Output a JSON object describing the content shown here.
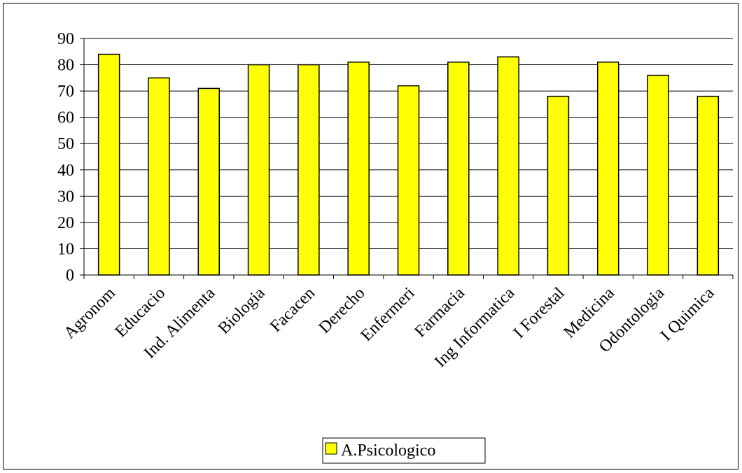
{
  "chart_data": {
    "type": "bar",
    "categories": [
      "Agronom",
      "Educacio",
      "Ind. Alimenta",
      "Biologia",
      "Facacen",
      "Derecho",
      "Enfermeri",
      "Farmacia",
      "Ing Informatica",
      "I Forestal",
      "Medicina",
      "Odontologia",
      "I Quimica"
    ],
    "series": [
      {
        "name": "A.Psicologico",
        "values": [
          84,
          75,
          71,
          80,
          80,
          81,
          72,
          81,
          83,
          68,
          81,
          76,
          68
        ]
      }
    ],
    "yticks": [
      0,
      10,
      20,
      30,
      40,
      50,
      60,
      70,
      80,
      90
    ],
    "ylim": [
      0,
      90
    ],
    "grid": true,
    "legend_position": "bottom-center",
    "bar_color": "#ffff00",
    "bar_edge_color": "#000000"
  }
}
